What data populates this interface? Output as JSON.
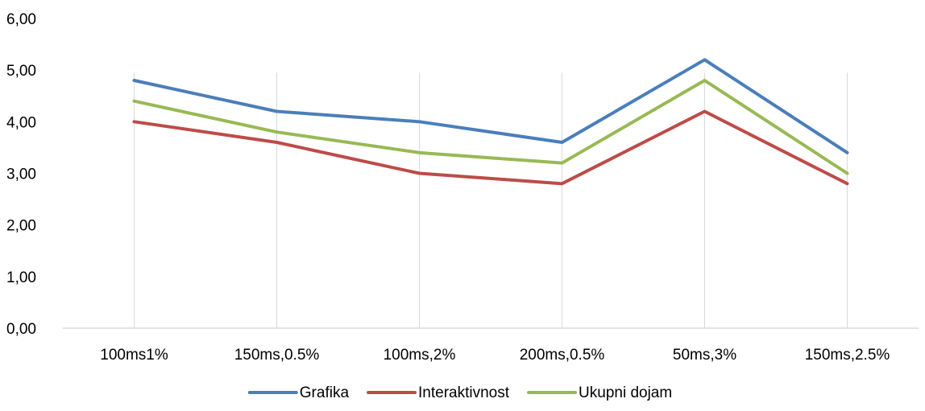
{
  "chart_data": {
    "type": "line",
    "title": "",
    "xlabel": "",
    "ylabel": "",
    "categories": [
      "100ms1%",
      "150ms,0.5%",
      "100ms,2%",
      "200ms,0.5%",
      "50ms,3%",
      "150ms,2.5%"
    ],
    "ylim": [
      0,
      6
    ],
    "y_ticks": [
      "0,00",
      "1,00",
      "2,00",
      "3,00",
      "4,00",
      "5,00",
      "6,00"
    ],
    "grid": "vertical lines at categories",
    "legend_position": "bottom",
    "series": [
      {
        "name": "Grafika",
        "color": "#4A7EBB",
        "values": [
          4.8,
          4.2,
          4.0,
          3.6,
          5.2,
          3.4
        ]
      },
      {
        "name": "Interaktivnost",
        "color": "#BE4B48",
        "values": [
          4.0,
          3.6,
          3.0,
          2.8,
          4.2,
          2.8
        ]
      },
      {
        "name": "Ukupni dojam",
        "color": "#98B954",
        "values": [
          4.4,
          3.8,
          3.4,
          3.2,
          4.8,
          3.0
        ]
      }
    ]
  }
}
